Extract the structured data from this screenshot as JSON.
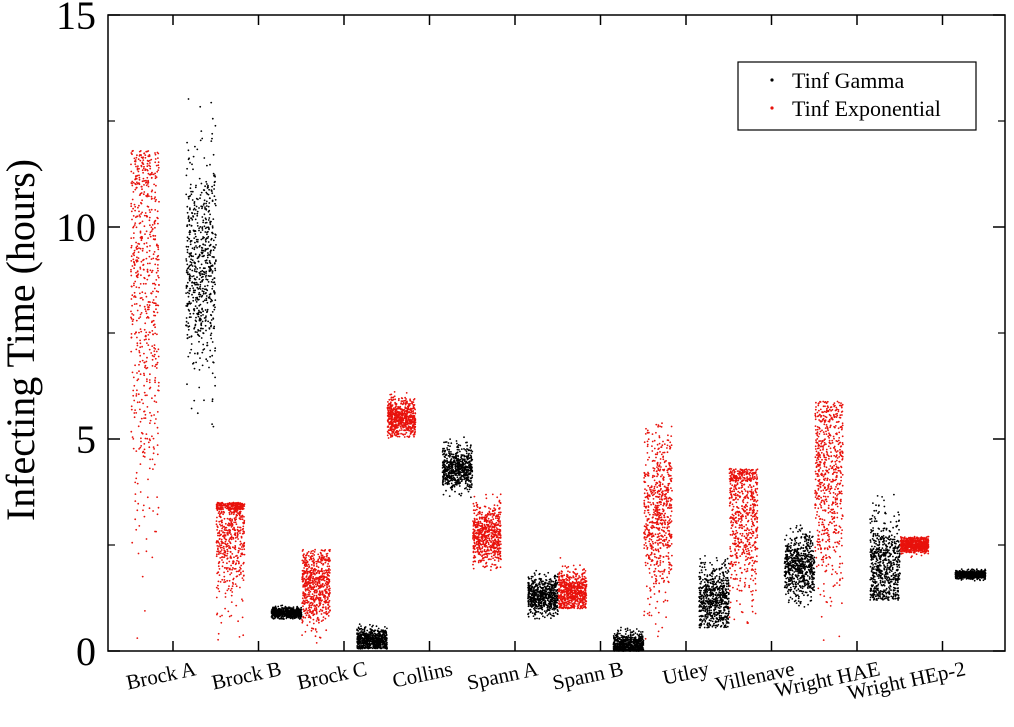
{
  "chart_data": {
    "type": "scatter",
    "ylabel": "Infecting Time (hours)",
    "xlabel": "",
    "ylim": [
      0,
      15
    ],
    "yticks": [
      0,
      5,
      10,
      15
    ],
    "grid": false,
    "legend_placement": "top-right",
    "categories": [
      "Brock A",
      "Brock B",
      "Brock C",
      "Collins",
      "Spann A",
      "Spann B",
      "Utley",
      "Villenave",
      "Wright HAE",
      "Wright HEp-2"
    ],
    "series": [
      {
        "name": "Tinf Gamma",
        "color": "#000000",
        "distributions": [
          {
            "category": "Brock A",
            "center": 9.0,
            "min": 5.0,
            "max": 13.1
          },
          {
            "category": "Brock B",
            "center": 0.9,
            "min": 0.75,
            "max": 1.1
          },
          {
            "category": "Brock C",
            "center": 0.25,
            "min": 0.05,
            "max": 0.7
          },
          {
            "category": "Collins",
            "center": 4.3,
            "min": 3.6,
            "max": 5.1
          },
          {
            "category": "Spann A",
            "center": 1.3,
            "min": 0.75,
            "max": 2.0
          },
          {
            "category": "Spann B",
            "center": 0.15,
            "min": 0.0,
            "max": 0.6
          },
          {
            "category": "Utley",
            "center": 1.2,
            "min": 0.55,
            "max": 2.4
          },
          {
            "category": "Villenave",
            "center": 2.0,
            "min": 1.0,
            "max": 3.2
          },
          {
            "category": "Wright HAE",
            "center": 2.0,
            "min": 1.2,
            "max": 3.9
          },
          {
            "category": "Wright HEp-2",
            "center": 1.8,
            "min": 1.65,
            "max": 1.95
          }
        ]
      },
      {
        "name": "Tinf Exponential",
        "color": "#e8120c",
        "distributions": [
          {
            "category": "Brock A",
            "center": 8.8,
            "min": 0.0,
            "max": 11.8
          },
          {
            "category": "Brock B",
            "center": 2.95,
            "min": 0.0,
            "max": 3.5
          },
          {
            "category": "Brock C",
            "center": 1.55,
            "min": 0.0,
            "max": 2.4
          },
          {
            "category": "Collins",
            "center": 5.5,
            "min": 5.0,
            "max": 6.2
          },
          {
            "category": "Spann A",
            "center": 2.75,
            "min": 1.9,
            "max": 3.9
          },
          {
            "category": "Spann B",
            "center": 1.4,
            "min": 1.0,
            "max": 2.2
          },
          {
            "category": "Utley",
            "center": 3.2,
            "min": 0.0,
            "max": 5.4
          },
          {
            "category": "Villenave",
            "center": 3.3,
            "min": 0.0,
            "max": 4.3
          },
          {
            "category": "Wright HAE",
            "center": 4.2,
            "min": 0.0,
            "max": 5.9
          },
          {
            "category": "Wright HEp-2",
            "center": 2.5,
            "min": 2.2,
            "max": 2.7
          }
        ]
      }
    ]
  }
}
